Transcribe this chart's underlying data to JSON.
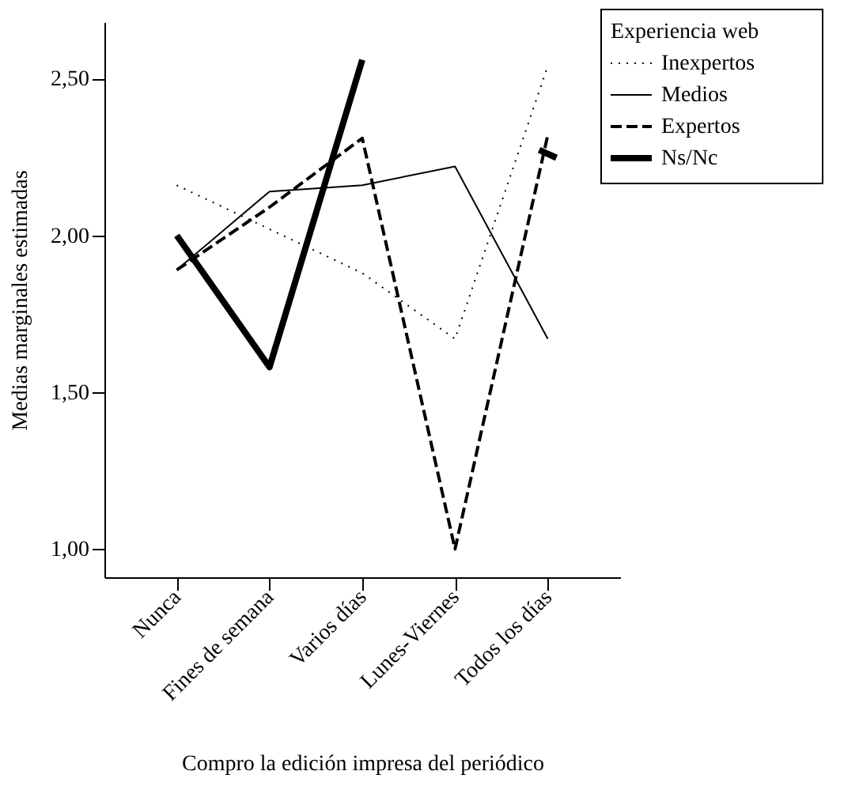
{
  "chart_data": {
    "type": "line",
    "xlabel": "Compro la edición impresa del periódico",
    "ylabel": "Medias marginales estimadas",
    "legend_title": "Experiencia web",
    "legend": "top right",
    "grid": false,
    "marker": "none",
    "categories": [
      "Nunca",
      "Fines de semana",
      "Varios días",
      "Lunes-Viernes",
      "Todos los días"
    ],
    "ylim": [
      0.91,
      2.68
    ],
    "yticks": [
      {
        "value": 1,
        "label": "1,00"
      },
      {
        "value": 1.5,
        "label": "1,50"
      },
      {
        "value": 2,
        "label": "2,00"
      },
      {
        "value": 2.5,
        "label": "2,50"
      }
    ],
    "series": [
      {
        "name": "Inexpertos",
        "color": "#000000",
        "line_style": "dotted",
        "values": [
          2.16,
          2.02,
          1.88,
          1.67,
          2.54
        ]
      },
      {
        "name": "Medios",
        "color": "#000000",
        "line_style": "solid",
        "values": [
          1.89,
          2.14,
          2.16,
          2.22,
          1.67
        ]
      },
      {
        "name": "Expertos",
        "color": "#000000",
        "line_style": "dashed",
        "values": [
          1.89,
          2.09,
          2.31,
          1.0,
          2.32
        ]
      },
      {
        "name": "Ns/Nc",
        "color": "#000000",
        "line_style": "solid",
        "values": [
          2.0,
          1.58,
          2.56,
          null,
          2.26
        ]
      }
    ]
  }
}
